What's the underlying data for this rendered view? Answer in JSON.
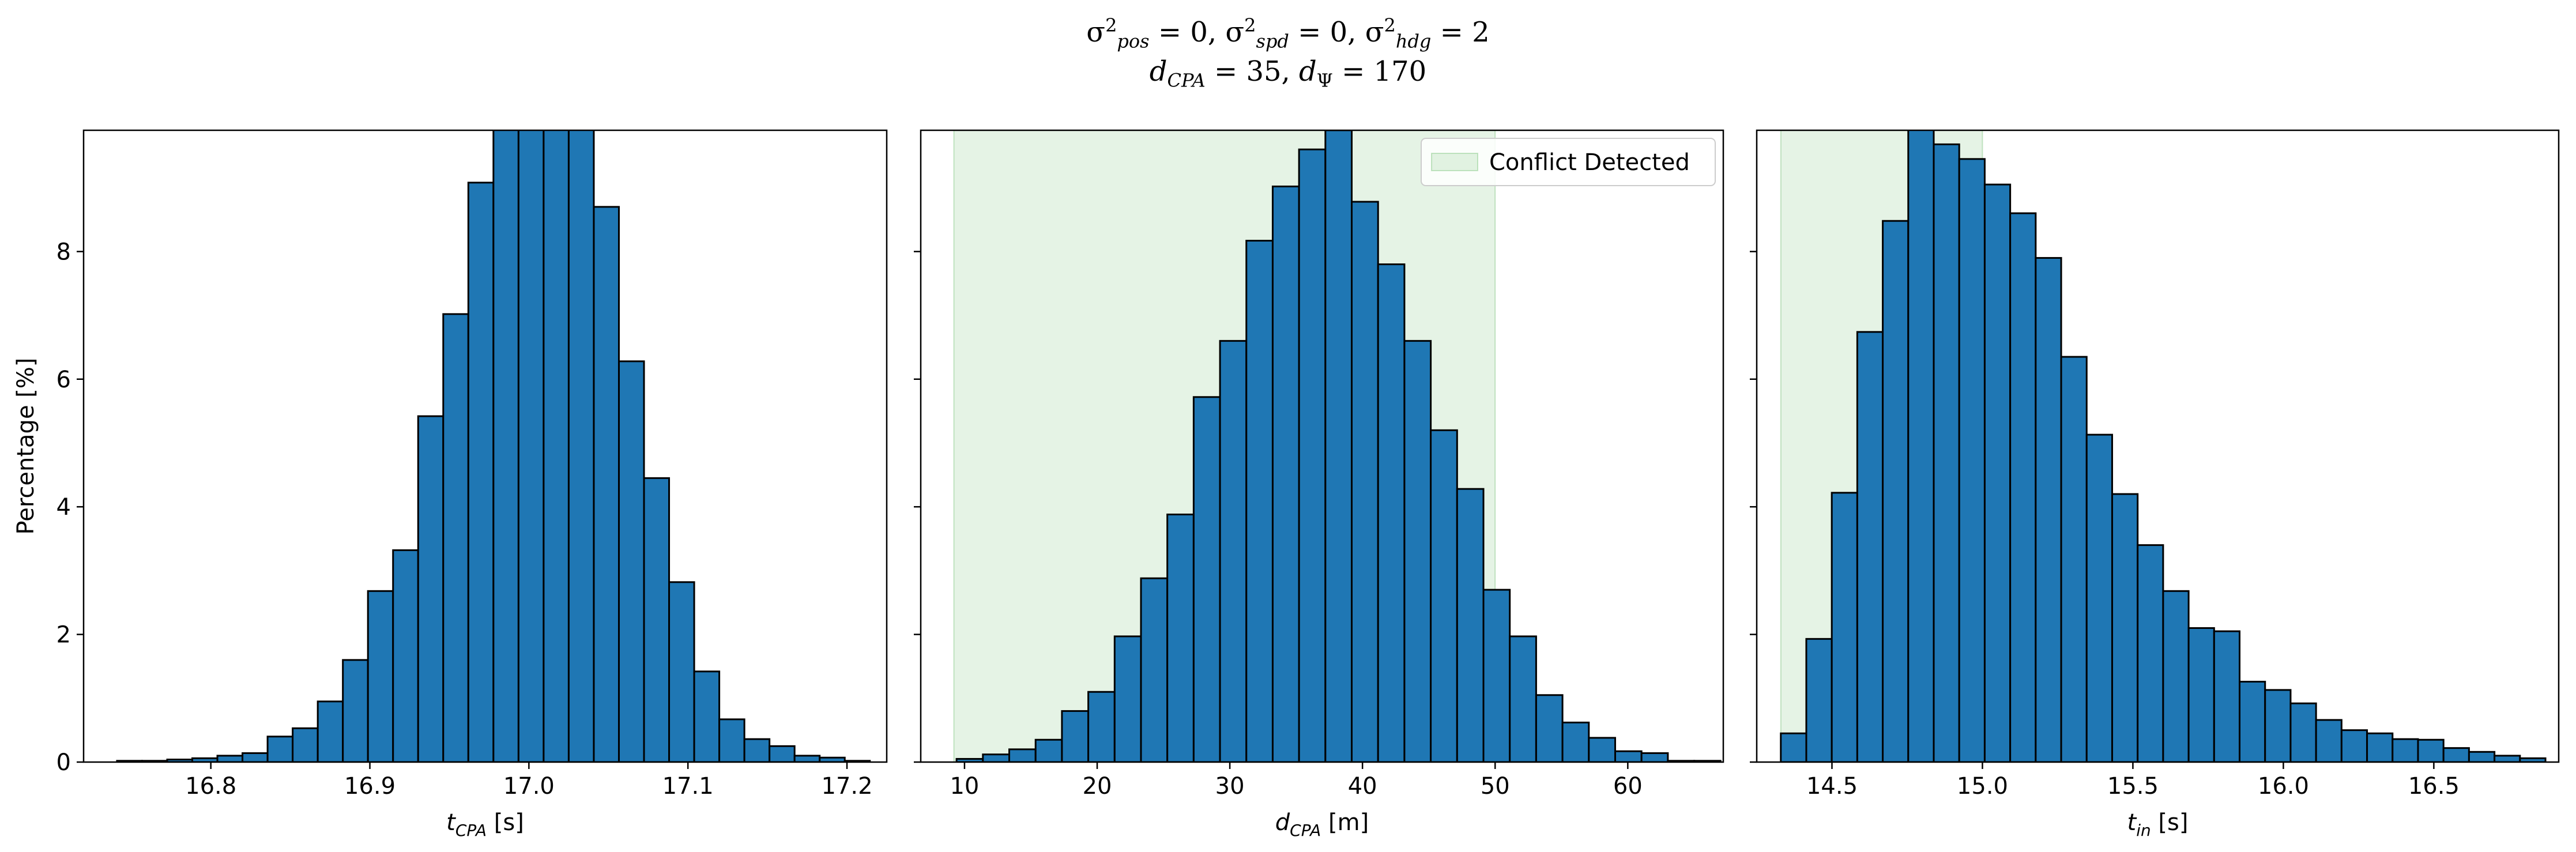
{
  "figure": {
    "title_line1_html": "σ<sup>2</sup><sub><i>pos</i></sub> = 0, σ<sup>2</sup><sub><i>spd</i></sub> = 0, σ<sup>2</sup><sub><i>hdg</i></sub> = 2",
    "title_line2_html": "<i>d</i><sub><i>CPA</i></sub> = 35, <i>d</i><sub>Ψ</sub> = 170",
    "shared_ylabel": "Percentage [%]",
    "colors": {
      "bar": "#1f77b4",
      "bar_edge": "#000000",
      "region": "#2ca02c"
    }
  },
  "chart_data": [
    {
      "type": "bar",
      "title": "",
      "xlabel_main": "t",
      "xlabel_sub": "CPA",
      "xlabel_unit": "[s]",
      "ylabel": "Percentage [%]",
      "xlim": [
        16.72,
        17.225
      ],
      "ylim": [
        0,
        9.9
      ],
      "xticks": [
        16.8,
        16.9,
        17.0,
        17.1,
        17.2
      ],
      "xtick_labels": [
        "16.8",
        "16.9",
        "17.0",
        "17.1",
        "17.2"
      ],
      "yticks": [
        0,
        2,
        4,
        6,
        8
      ],
      "ytick_labels": [
        "0",
        "2",
        "4",
        "6",
        "8"
      ],
      "bin_start": 16.741,
      "bin_width": 0.01578,
      "values": [
        0.02,
        0.02,
        0.04,
        0.06,
        0.1,
        0.14,
        0.4,
        0.53,
        0.95,
        1.6,
        2.68,
        3.32,
        5.42,
        7.02,
        9.08,
        10.9,
        11.8,
        11.6,
        11.0,
        8.7,
        6.28,
        4.45,
        2.82,
        1.42,
        0.67,
        0.36,
        0.25,
        0.1,
        0.07,
        0.02
      ],
      "grid": false,
      "legend": null
    },
    {
      "type": "bar",
      "title": "",
      "xlabel_main": "d",
      "xlabel_sub": "CPA",
      "xlabel_unit": "[m]",
      "ylabel": "",
      "xlim": [
        6.7,
        67.2
      ],
      "ylim": [
        0,
        9.9
      ],
      "xticks": [
        10,
        20,
        30,
        40,
        50,
        60
      ],
      "xtick_labels": [
        "10",
        "20",
        "30",
        "40",
        "50",
        "60"
      ],
      "yticks": [
        0,
        2,
        4,
        6,
        8
      ],
      "ytick_labels": [
        "",
        "",
        "",
        "",
        ""
      ],
      "bin_start": 9.4,
      "bin_width": 1.986,
      "values": [
        0.05,
        0.12,
        0.2,
        0.35,
        0.8,
        1.1,
        1.97,
        2.88,
        3.88,
        5.72,
        6.6,
        8.17,
        9.02,
        9.6,
        9.9,
        8.78,
        7.8,
        6.6,
        5.2,
        4.28,
        2.7,
        1.97,
        1.05,
        0.62,
        0.38,
        0.17,
        0.14,
        0.02,
        0.02
      ],
      "shaded_region": [
        9.2,
        50.0
      ],
      "grid": false,
      "legend": {
        "placement": "upper right",
        "entries": [
          "Conflict Detected"
        ]
      }
    },
    {
      "type": "bar",
      "title": "",
      "xlabel_main": "t",
      "xlabel_sub": "in",
      "xlabel_unit": "[s]",
      "ylabel": "",
      "xlim": [
        14.25,
        16.915
      ],
      "ylim": [
        0,
        9.9
      ],
      "xticks": [
        14.5,
        15.0,
        15.5,
        16.0,
        16.5
      ],
      "xtick_labels": [
        "14.5",
        "15.0",
        "15.5",
        "16.0",
        "16.5"
      ],
      "yticks": [
        0,
        2,
        4,
        6,
        8
      ],
      "ytick_labels": [
        "",
        "",
        "",
        "",
        ""
      ],
      "bin_start": 14.33,
      "bin_width": 0.0847,
      "values": [
        0.45,
        1.93,
        4.22,
        6.74,
        8.48,
        9.95,
        9.68,
        9.45,
        9.05,
        8.6,
        7.9,
        6.35,
        5.13,
        4.2,
        3.4,
        2.68,
        2.1,
        2.05,
        1.26,
        1.13,
        0.92,
        0.66,
        0.5,
        0.45,
        0.36,
        0.35,
        0.22,
        0.16,
        0.1,
        0.06
      ],
      "shaded_region": [
        14.33,
        15.0
      ],
      "grid": false,
      "legend": null
    }
  ]
}
